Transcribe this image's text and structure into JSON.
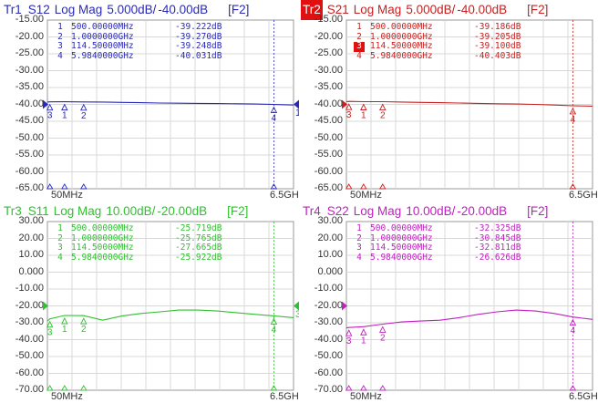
{
  "traces": [
    {
      "id": "tr1",
      "tr_label": "Tr1",
      "param": "S12",
      "format": "Log Mag",
      "scale": "5.000dB/",
      "ref": "-40.00dB",
      "tag": "[F2]",
      "color": "#2a2ab8",
      "active": false,
      "y_ticks": [
        "-15.00",
        "-20.00",
        "-25.00",
        "-30.00",
        "-35.00",
        "-40.00",
        "-45.00",
        "-50.00",
        "-55.00",
        "-60.00",
        "-65.00"
      ],
      "ylim": [
        -65,
        -15
      ],
      "x_start": "50MHz",
      "x_stop": "6.5GHz",
      "markers": [
        {
          "n": "1",
          "freq": "500.00000MHz",
          "value": "-39.222dB"
        },
        {
          "n": "2",
          "freq": "1.0000000GHz",
          "value": "-39.270dB"
        },
        {
          "n": "3",
          "freq": "114.50000MHz",
          "value": "-39.248dB"
        },
        {
          "n": "4",
          "freq": "5.9840000GHz",
          "value": "-40.031dB"
        }
      ],
      "chart_data": {
        "type": "line",
        "x": [
          50,
          114.5,
          500,
          1000,
          1500,
          2000,
          2500,
          3000,
          3500,
          4000,
          4500,
          5000,
          5500,
          5984,
          6500
        ],
        "y": [
          -39.3,
          -39.25,
          -39.22,
          -39.27,
          -39.3,
          -39.4,
          -39.5,
          -39.6,
          -39.65,
          -39.7,
          -39.75,
          -39.8,
          -39.9,
          -40.03,
          -40.2
        ],
        "xlabel": "",
        "ylabel": ""
      },
      "ref_marker_value": -40,
      "ref_right_label": "1"
    },
    {
      "id": "tr2",
      "tr_label": "Tr2",
      "param": "S21",
      "format": "Log Mag",
      "scale": "5.000dB/",
      "ref": "-40.00dB",
      "tag": "[F2]",
      "color": "#c82020",
      "active": true,
      "y_ticks": [
        "-15.00",
        "-20.00",
        "-25.00",
        "-30.00",
        "-35.00",
        "-40.00",
        "-45.00",
        "-50.00",
        "-55.00",
        "-60.00",
        "-65.00"
      ],
      "ylim": [
        -65,
        -15
      ],
      "x_start": "50MHz",
      "x_stop": "6.5GHz",
      "markers": [
        {
          "n": "1",
          "freq": "500.00000MHz",
          "value": "-39.186dB"
        },
        {
          "n": "2",
          "freq": "1.0000000GHz",
          "value": "-39.205dB"
        },
        {
          "n": "3",
          "freq": "114.50000MHz",
          "value": "-39.100dB",
          "active": true
        },
        {
          "n": "4",
          "freq": "5.9840000GHz",
          "value": "-40.403dB"
        }
      ],
      "chart_data": {
        "type": "line",
        "x": [
          50,
          114.5,
          500,
          1000,
          1500,
          2000,
          2500,
          3000,
          3500,
          4000,
          4500,
          5000,
          5500,
          5984,
          6500
        ],
        "y": [
          -39.2,
          -39.1,
          -39.19,
          -39.2,
          -39.3,
          -39.4,
          -39.5,
          -39.6,
          -39.7,
          -39.8,
          -39.9,
          -40.0,
          -40.2,
          -40.4,
          -40.5
        ],
        "xlabel": "",
        "ylabel": ""
      },
      "ref_marker_value": -40,
      "ref_right_label": ""
    },
    {
      "id": "tr3",
      "tr_label": "Tr3",
      "param": "S11",
      "format": "Log Mag",
      "scale": "10.00dB/",
      "ref": "-20.00dB",
      "tag": "[F2]",
      "color": "#30c030",
      "active": false,
      "y_ticks": [
        "30.00",
        "20.00",
        "10.00",
        "0.000",
        "-10.00",
        "-20.00",
        "-30.00",
        "-40.00",
        "-50.00",
        "-60.00",
        "-70.00"
      ],
      "ylim": [
        -70,
        30
      ],
      "x_start": "50MHz",
      "x_stop": "6.5GHz",
      "markers": [
        {
          "n": "1",
          "freq": "500.00000MHz",
          "value": "-25.719dB"
        },
        {
          "n": "2",
          "freq": "1.0000000GHz",
          "value": "-25.765dB"
        },
        {
          "n": "3",
          "freq": "114.50000MHz",
          "value": "-27.665dB"
        },
        {
          "n": "4",
          "freq": "5.9840000GHz",
          "value": "-25.922dB"
        }
      ],
      "chart_data": {
        "type": "line",
        "x": [
          50,
          114.5,
          500,
          1000,
          1500,
          2000,
          2500,
          3000,
          3500,
          4000,
          4500,
          5000,
          5500,
          5984,
          6500
        ],
        "y": [
          -29,
          -27.7,
          -25.7,
          -25.8,
          -28.5,
          -26,
          -24.5,
          -23.5,
          -22.5,
          -22.5,
          -23,
          -24,
          -25,
          -25.9,
          -27
        ],
        "xlabel": "",
        "ylabel": ""
      },
      "ref_marker_value": -20,
      "ref_right_label": "3"
    },
    {
      "id": "tr4",
      "tr_label": "Tr4",
      "param": "S22",
      "format": "Log Mag",
      "scale": "10.00dB/",
      "ref": "-20.00dB",
      "tag": "[F2]",
      "color": "#c020c0",
      "active": false,
      "y_ticks": [
        "30.00",
        "20.00",
        "10.00",
        "0.000",
        "-10.00",
        "-20.00",
        "-30.00",
        "-40.00",
        "-50.00",
        "-60.00",
        "-70.00"
      ],
      "ylim": [
        -70,
        30
      ],
      "x_start": "50MHz",
      "x_stop": "6.5GHz",
      "markers": [
        {
          "n": "1",
          "freq": "500.00000MHz",
          "value": "-32.325dB"
        },
        {
          "n": "2",
          "freq": "1.0000000GHz",
          "value": "-30.845dB"
        },
        {
          "n": "3",
          "freq": "114.50000MHz",
          "value": "-32.811dB"
        },
        {
          "n": "4",
          "freq": "5.9840000GHz",
          "value": "-26.626dB"
        }
      ],
      "chart_data": {
        "type": "line",
        "x": [
          50,
          114.5,
          500,
          1000,
          1500,
          2000,
          2500,
          3000,
          3500,
          4000,
          4500,
          5000,
          5500,
          5984,
          6500
        ],
        "y": [
          -33,
          -32.8,
          -32.3,
          -30.8,
          -29.5,
          -29,
          -28.5,
          -27,
          -25,
          -23.5,
          -22.5,
          -23,
          -24.5,
          -26.6,
          -28
        ],
        "xlabel": "",
        "ylabel": ""
      },
      "ref_marker_value": -20,
      "ref_right_label": ""
    }
  ]
}
